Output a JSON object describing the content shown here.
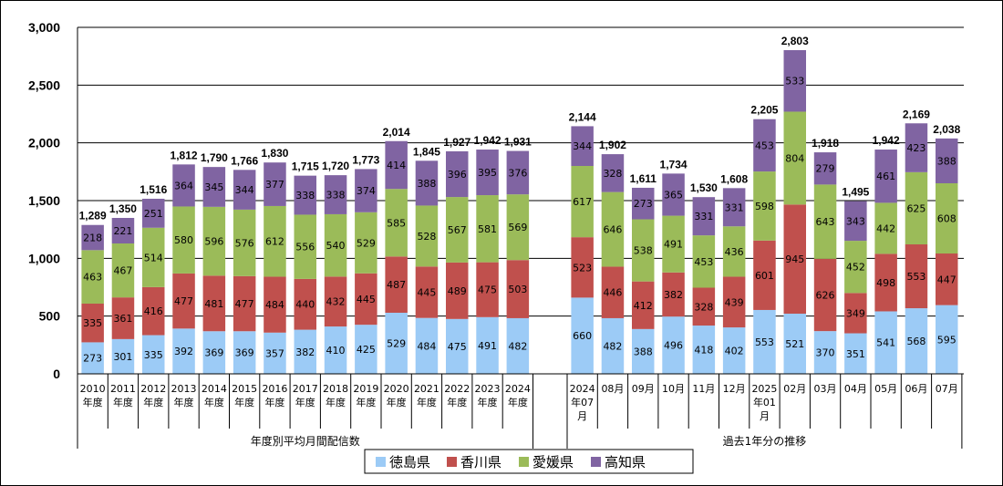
{
  "chart_data": {
    "type": "bar",
    "stacked": true,
    "ylim": [
      0,
      3000
    ],
    "yticks": [
      0,
      500,
      1000,
      1500,
      2000,
      2500,
      3000
    ],
    "ytick_labels": [
      "0",
      "500",
      "1,000",
      "1,500",
      "2,000",
      "2,500",
      "3,000"
    ],
    "grid": true,
    "legend_position": "bottom",
    "groups": [
      {
        "label": "年度別平均月間配信数",
        "categories": [
          [
            "2010",
            "年度"
          ],
          [
            "2011",
            "年度"
          ],
          [
            "2012",
            "年度"
          ],
          [
            "2013",
            "年度"
          ],
          [
            "2014",
            "年度"
          ],
          [
            "2015",
            "年度"
          ],
          [
            "2016",
            "年度"
          ],
          [
            "2017",
            "年度"
          ],
          [
            "2018",
            "年度"
          ],
          [
            "2019",
            "年度"
          ],
          [
            "2020",
            "年度"
          ],
          [
            "2021",
            "年度"
          ],
          [
            "2022",
            "年度"
          ],
          [
            "2023",
            "年度"
          ],
          [
            "2024",
            "年度"
          ]
        ],
        "series_values": [
          [
            273,
            301,
            335,
            392,
            369,
            369,
            357,
            382,
            410,
            425,
            529,
            484,
            475,
            491,
            482
          ],
          [
            335,
            361,
            416,
            477,
            481,
            477,
            484,
            440,
            432,
            445,
            487,
            445,
            489,
            475,
            503
          ],
          [
            463,
            467,
            514,
            580,
            596,
            576,
            612,
            556,
            540,
            529,
            585,
            528,
            567,
            581,
            569
          ],
          [
            218,
            221,
            251,
            364,
            345,
            344,
            377,
            338,
            338,
            374,
            414,
            388,
            396,
            395,
            376
          ]
        ],
        "total_labels": [
          "1,289",
          "1,350",
          "1,516",
          "1,812",
          "1,790",
          "1,766",
          "1,830",
          "1,715",
          "1,720",
          "1,773",
          "2,014",
          "1,845",
          "1,927",
          "1,942",
          "1,931"
        ]
      },
      {
        "label": "過去1年分の推移",
        "categories": [
          [
            "2024",
            "年07",
            "月"
          ],
          [
            "08月"
          ],
          [
            "09月"
          ],
          [
            "10月"
          ],
          [
            "11月"
          ],
          [
            "12月"
          ],
          [
            "2025",
            "年01",
            "月"
          ],
          [
            "02月"
          ],
          [
            "03月"
          ],
          [
            "04月"
          ],
          [
            "05月"
          ],
          [
            "06月"
          ],
          [
            "07月"
          ]
        ],
        "series_values": [
          [
            660,
            482,
            388,
            496,
            418,
            402,
            553,
            521,
            370,
            351,
            541,
            568,
            595
          ],
          [
            523,
            446,
            412,
            382,
            328,
            439,
            601,
            945,
            626,
            349,
            498,
            553,
            447
          ],
          [
            617,
            646,
            538,
            491,
            453,
            436,
            598,
            804,
            643,
            452,
            442,
            625,
            608
          ],
          [
            344,
            328,
            273,
            365,
            331,
            331,
            453,
            533,
            279,
            343,
            461,
            423,
            388
          ]
        ],
        "total_labels": [
          "2,144",
          "1,902",
          "1,611",
          "1,734",
          "1,530",
          "1,608",
          "2,205",
          "2,803",
          "1,918",
          "1,495",
          "1,942",
          "2,169",
          "2,038"
        ]
      }
    ],
    "series": [
      {
        "name": "徳島県",
        "color": "#9ccbf6"
      },
      {
        "name": "香川県",
        "color": "#c0504d"
      },
      {
        "name": "愛媛県",
        "color": "#9bbb59"
      },
      {
        "name": "高知県",
        "color": "#8064a2"
      }
    ]
  }
}
